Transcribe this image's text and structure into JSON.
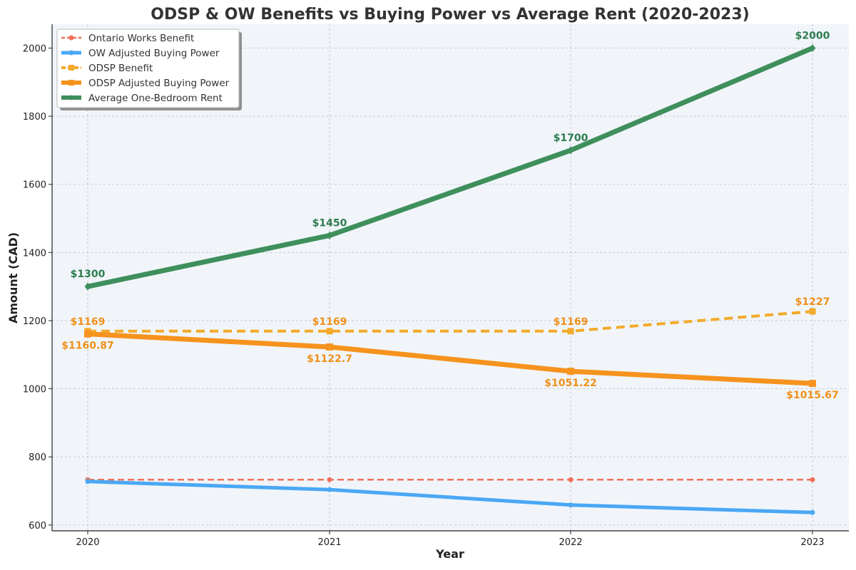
{
  "chart_data": {
    "type": "line",
    "title": "ODSP & OW Benefits vs Buying Power vs Average Rent (2020-2023)",
    "xlabel": "Year",
    "ylabel": "Amount (CAD)",
    "categories": [
      "2020",
      "2021",
      "2022",
      "2023"
    ],
    "ylim": [
      583,
      2070
    ],
    "yticks": [
      600,
      800,
      1000,
      1200,
      1400,
      1600,
      1800,
      2000
    ],
    "grid": true,
    "legend_position": "top-left",
    "series": [
      {
        "name": "Ontario Works Benefit",
        "values": [
          733,
          733,
          733,
          733
        ],
        "color": "#f07159",
        "style": "dashed",
        "marker": "circle",
        "labels": []
      },
      {
        "name": "OW Adjusted Buying Power",
        "values": [
          727.8,
          703.9,
          658.9,
          636.8
        ],
        "color": "#4aa8f5",
        "style": "solid",
        "marker": "circle",
        "labels": []
      },
      {
        "name": "ODSP Benefit",
        "values": [
          1169,
          1169,
          1169,
          1227
        ],
        "color": "#f3aa2a",
        "style": "dashed",
        "marker": "square",
        "labels": [
          "$1169",
          "$1169",
          "$1169",
          "$1227"
        ]
      },
      {
        "name": "ODSP Adjusted Buying Power",
        "values": [
          1160.87,
          1122.7,
          1051.22,
          1015.67
        ],
        "color": "#f6931e",
        "style": "solid",
        "marker": "square",
        "labels": [
          "$1160.87",
          "$1122.7",
          "$1051.22",
          "$1015.67"
        ]
      },
      {
        "name": "Average One-Bedroom Rent",
        "values": [
          1300,
          1450,
          1700,
          2000
        ],
        "color": "#3f8f5c",
        "style": "solid",
        "marker": "diamond",
        "labels": [
          "$1300",
          "$1450",
          "$1700",
          "$2000"
        ]
      }
    ],
    "colors": {
      "plot_background": "#f1f5fa",
      "grid": "#b9bec6",
      "text": "#333333",
      "rent_label": "#2e7d4f",
      "odsp_label": "#f0901a"
    }
  }
}
